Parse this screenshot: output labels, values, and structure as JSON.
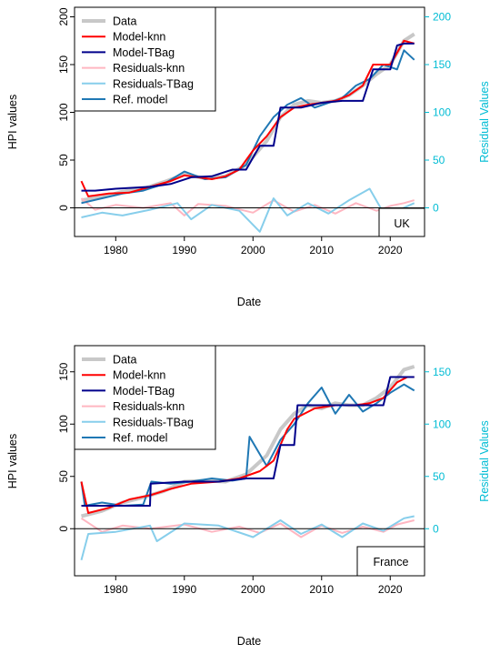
{
  "chart_data": [
    {
      "type": "line",
      "country": "UK",
      "xlabel": "Date",
      "ylabel": "HPI values",
      "y2label": "Residual Values",
      "xticks": [
        "1980",
        "1990",
        "2000",
        "2010",
        "2020"
      ],
      "yticks": [
        "0",
        "50",
        "100",
        "150",
        "200"
      ],
      "y2ticks": [
        "0",
        "50",
        "100",
        "150",
        "200"
      ],
      "xlim": [
        1974,
        2025
      ],
      "ylim": [
        -30,
        210
      ],
      "legend_position": "top-left",
      "series": [
        {
          "name": "Data",
          "color": "#c8c8c8",
          "x": [
            1975,
            1978,
            1981,
            1984,
            1987,
            1990,
            1993,
            1996,
            1999,
            2002,
            2004,
            2006,
            2008,
            2010,
            2012,
            2014,
            2016,
            2018,
            2020,
            2022,
            2023.5
          ],
          "y": [
            8,
            11,
            17,
            20,
            27,
            35,
            31,
            33,
            45,
            70,
            95,
            108,
            112,
            110,
            112,
            118,
            128,
            140,
            150,
            175,
            182
          ]
        },
        {
          "name": "Model-knn",
          "color": "#ff0000",
          "x": [
            1975,
            1976,
            1979,
            1982,
            1985,
            1988,
            1990,
            1992,
            1994,
            1996,
            1998,
            2000,
            2002,
            2004,
            2006,
            2008,
            2010,
            2012,
            2014,
            2016,
            2017.5,
            2020,
            2022,
            2023.5
          ],
          "y": [
            28,
            12,
            15,
            16,
            22,
            28,
            34,
            32,
            30,
            33,
            40,
            60,
            75,
            95,
            105,
            108,
            110,
            112,
            118,
            128,
            150,
            150,
            175,
            172
          ]
        },
        {
          "name": "Model-TBag",
          "color": "#00008b",
          "x": [
            1975,
            1977,
            1980,
            1985,
            1988,
            1991,
            1994,
            1997,
            1999,
            2001,
            2003,
            2004,
            2007,
            2010,
            2013,
            2016,
            2017.5,
            2020,
            2021,
            2022,
            2023.5
          ],
          "y": [
            18,
            18,
            20,
            22,
            25,
            32,
            33,
            40,
            40,
            65,
            65,
            105,
            105,
            110,
            112,
            112,
            145,
            145,
            170,
            172,
            172
          ]
        },
        {
          "name": "Residuals-knn",
          "color": "#ffb6c1",
          "x": [
            1975,
            1977,
            1980,
            1984,
            1988,
            1990,
            1992,
            1996,
            2000,
            2003,
            2006,
            2009,
            2012,
            2015,
            2018,
            2020,
            2022,
            2023.5
          ],
          "y": [
            10,
            -2,
            3,
            0,
            5,
            -8,
            4,
            2,
            -5,
            8,
            -4,
            3,
            -6,
            5,
            -3,
            2,
            5,
            8
          ]
        },
        {
          "name": "Residuals-TBag",
          "color": "#87ceeb",
          "x": [
            1975,
            1978,
            1981,
            1985,
            1989,
            1991,
            1994,
            1998,
            2001,
            2003,
            2005,
            2008,
            2011,
            2014,
            2017,
            2019,
            2021,
            2023.5
          ],
          "y": [
            -10,
            -5,
            -8,
            -2,
            5,
            -12,
            3,
            -3,
            -25,
            10,
            -8,
            5,
            -6,
            8,
            20,
            -5,
            -3,
            5
          ]
        },
        {
          "name": "Ref. model",
          "color": "#1f78b4",
          "x": [
            1975,
            1978,
            1981,
            1984,
            1987,
            1990,
            1993,
            1996,
            1999,
            2001,
            2003,
            2005,
            2007,
            2009,
            2011,
            2013,
            2015,
            2017,
            2019,
            2021,
            2022,
            2023.5
          ],
          "y": [
            5,
            10,
            15,
            18,
            25,
            38,
            30,
            32,
            45,
            75,
            95,
            108,
            115,
            105,
            110,
            115,
            128,
            135,
            150,
            145,
            165,
            155
          ]
        }
      ],
      "residual_series": [
        "Residuals-knn",
        "Residuals-TBag"
      ]
    },
    {
      "type": "line",
      "country": "France",
      "xlabel": "Date",
      "ylabel": "HPI values",
      "y2label": "Residual Values",
      "xticks": [
        "1980",
        "1990",
        "2000",
        "2010",
        "2020"
      ],
      "yticks": [
        "0",
        "50",
        "100",
        "150"
      ],
      "y2ticks": [
        "0",
        "50",
        "100",
        "150"
      ],
      "xlim": [
        1974,
        2025
      ],
      "ylim": [
        -45,
        175
      ],
      "legend_position": "top-left",
      "series": [
        {
          "name": "Data",
          "color": "#c8c8c8",
          "x": [
            1975,
            1978,
            1981,
            1984,
            1987,
            1990,
            1993,
            1996,
            1999,
            2002,
            2004,
            2006,
            2008,
            2010,
            2012,
            2014,
            2016,
            2018,
            2020,
            2022,
            2023.5
          ],
          "y": [
            12,
            17,
            25,
            30,
            36,
            45,
            46,
            45,
            52,
            70,
            95,
            110,
            118,
            115,
            120,
            118,
            118,
            125,
            135,
            152,
            155
          ]
        },
        {
          "name": "Model-knn",
          "color": "#ff0000",
          "x": [
            1975,
            1976,
            1979,
            1982,
            1985,
            1988,
            1991,
            1995,
            1998,
            2001,
            2003,
            2005,
            2006,
            2009,
            2012,
            2015,
            2017,
            2019,
            2021,
            2022.5,
            2023.5
          ],
          "y": [
            45,
            15,
            20,
            28,
            32,
            38,
            43,
            45,
            48,
            55,
            65,
            95,
            105,
            115,
            118,
            118,
            120,
            125,
            140,
            145,
            145
          ]
        },
        {
          "name": "Model-TBag",
          "color": "#00008b",
          "x": [
            1975,
            1976,
            1980,
            1985,
            1985.1,
            1990,
            1995,
            1999,
            2003,
            2004,
            2006,
            2006.5,
            2010,
            2015,
            2019,
            2020,
            2023.5
          ],
          "y": [
            22,
            22,
            22,
            22,
            43,
            45,
            45,
            48,
            48,
            80,
            80,
            118,
            118,
            118,
            118,
            145,
            145
          ]
        },
        {
          "name": "Residuals-knn",
          "color": "#ffb6c1",
          "x": [
            1975,
            1978,
            1981,
            1985,
            1990,
            1994,
            1998,
            2001,
            2004,
            2007,
            2010,
            2013,
            2016,
            2019,
            2021,
            2023.5
          ],
          "y": [
            10,
            -3,
            3,
            0,
            4,
            -3,
            2,
            -4,
            5,
            -8,
            3,
            -4,
            2,
            -3,
            4,
            8
          ]
        },
        {
          "name": "Residuals-TBag",
          "color": "#87ceeb",
          "x": [
            1975,
            1976,
            1980,
            1985,
            1986,
            1990,
            1995,
            2000,
            2004,
            2007,
            2010,
            2013,
            2016,
            2019,
            2022,
            2023.5
          ],
          "y": [
            -30,
            -5,
            -3,
            3,
            -12,
            5,
            3,
            -8,
            8,
            -5,
            4,
            -8,
            5,
            -2,
            10,
            12
          ]
        },
        {
          "name": "Ref. model",
          "color": "#1f78b4",
          "x": [
            1975,
            1975.5,
            1978,
            1981,
            1984,
            1985.2,
            1988,
            1991,
            1994,
            1997,
            1999,
            1999.5,
            2002,
            2004,
            2006,
            2008,
            2010,
            2012,
            2014,
            2016,
            2018,
            2020,
            2022,
            2023.5
          ],
          "y": [
            45,
            22,
            25,
            22,
            23,
            45,
            43,
            45,
            48,
            46,
            48,
            88,
            60,
            85,
            100,
            120,
            135,
            110,
            128,
            112,
            120,
            130,
            138,
            132
          ]
        }
      ],
      "residual_series": [
        "Residuals-knn",
        "Residuals-TBag"
      ]
    }
  ]
}
